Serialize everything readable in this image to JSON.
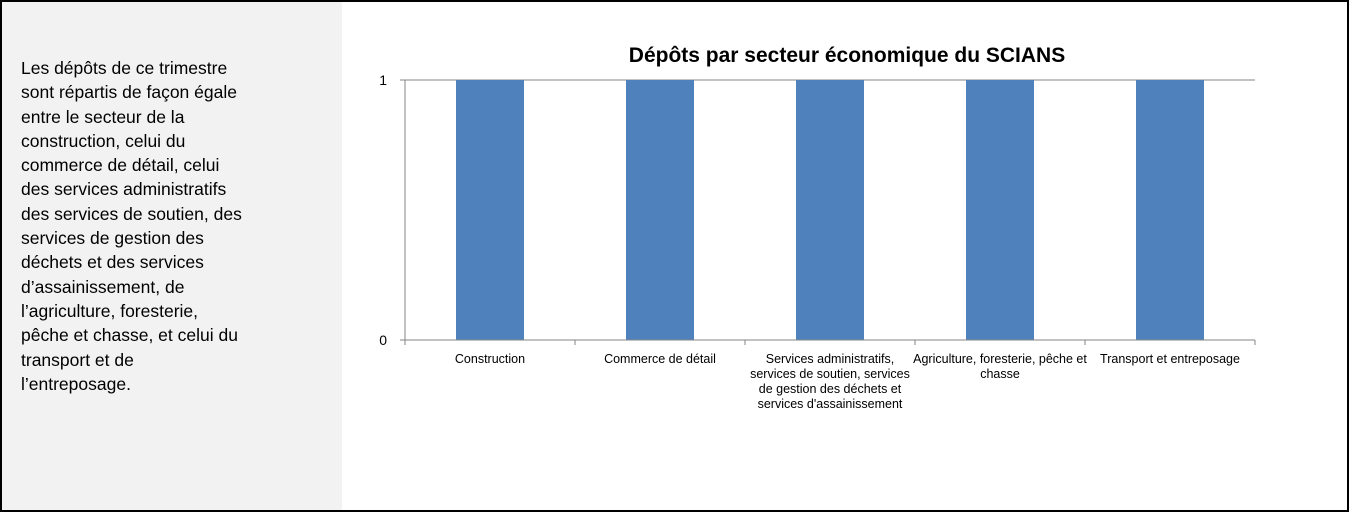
{
  "sidebar": {
    "lines": [
      "Les dépôts de ce trimestre",
      "sont répartis de façon égale",
      "entre le secteur de la",
      "construction, celui du",
      "commerce de détail, celui",
      "des services administratifs",
      "des services de soutien, des",
      "services de gestion des",
      "déchets et des services",
      "d’assainissement, de",
      "l’agriculture, foresterie,",
      "pêche et chasse, et celui du",
      "transport et de",
      "l’entreposage."
    ]
  },
  "chart_data": {
    "type": "bar",
    "title": "Dépôts par secteur économique du SCIANS",
    "categories": [
      "Construction",
      "Commerce de détail",
      "Services administratifs, services de soutien, services de gestion des déchets et services d'assainissement",
      "Agriculture, foresterie, pêche et chasse",
      "Transport et entreposage"
    ],
    "values": [
      1,
      1,
      1,
      1,
      1
    ],
    "color": "#4f81bd",
    "ylim": [
      0,
      1
    ],
    "yticks": [
      0,
      1
    ],
    "grid": true
  }
}
